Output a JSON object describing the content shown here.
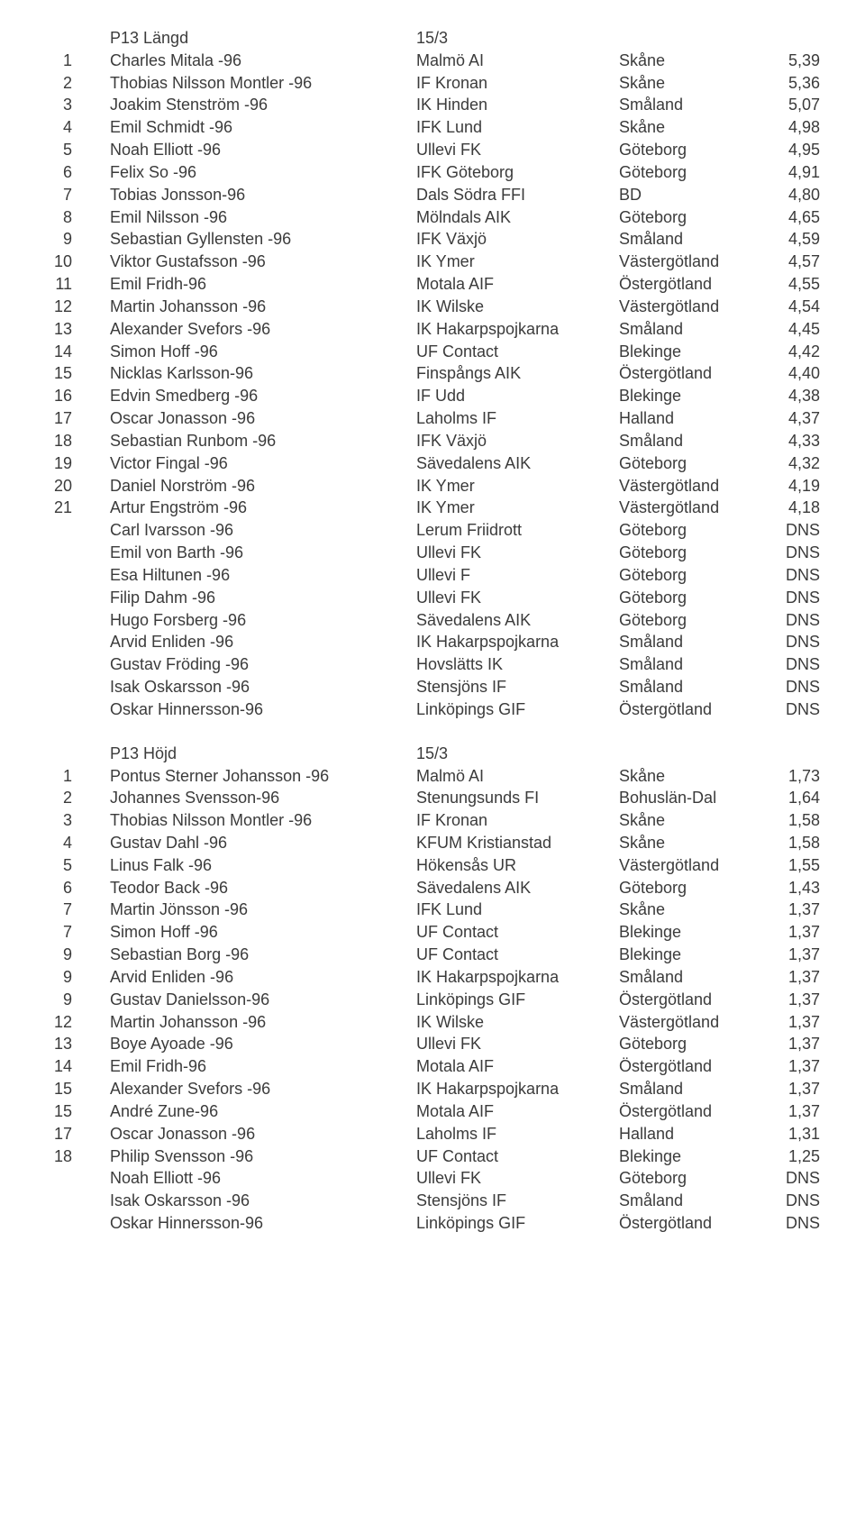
{
  "sections": [
    {
      "title": "P13 Längd",
      "date": "15/3",
      "rows": [
        {
          "rank": "1",
          "name": "Charles Mitala -96",
          "club": "Malmö AI",
          "region": "Skåne",
          "result": "5,39"
        },
        {
          "rank": "2",
          "name": "Thobias Nilsson Montler -96",
          "club": "IF Kronan",
          "region": "Skåne",
          "result": "5,36"
        },
        {
          "rank": "3",
          "name": "Joakim Stenström -96",
          "club": "IK Hinden",
          "region": "Småland",
          "result": "5,07"
        },
        {
          "rank": "4",
          "name": "Emil Schmidt -96",
          "club": "IFK Lund",
          "region": "Skåne",
          "result": "4,98"
        },
        {
          "rank": "5",
          "name": "Noah Elliott -96",
          "club": "Ullevi FK",
          "region": "Göteborg",
          "result": "4,95"
        },
        {
          "rank": "6",
          "name": "Felix So -96",
          "club": "IFK Göteborg",
          "region": "Göteborg",
          "result": "4,91"
        },
        {
          "rank": "7",
          "name": "Tobias Jonsson-96",
          "club": "Dals Södra FFI",
          "region": "BD",
          "result": "4,80"
        },
        {
          "rank": "8",
          "name": "Emil Nilsson -96",
          "club": "Mölndals AIK",
          "region": "Göteborg",
          "result": "4,65"
        },
        {
          "rank": "9",
          "name": "Sebastian Gyllensten -96",
          "club": "IFK Växjö",
          "region": "Småland",
          "result": "4,59"
        },
        {
          "rank": "10",
          "name": "Viktor Gustafsson -96",
          "club": "IK Ymer",
          "region": "Västergötland",
          "result": "4,57"
        },
        {
          "rank": "11",
          "name": "Emil Fridh-96",
          "club": "Motala AIF",
          "region": "Östergötland",
          "result": "4,55"
        },
        {
          "rank": "12",
          "name": "Martin Johansson -96",
          "club": "IK Wilske",
          "region": "Västergötland",
          "result": "4,54"
        },
        {
          "rank": "13",
          "name": "Alexander Svefors -96",
          "club": "IK Hakarpspojkarna",
          "region": "Småland",
          "result": "4,45"
        },
        {
          "rank": "14",
          "name": "Simon Hoff -96",
          "club": "UF Contact",
          "region": "Blekinge",
          "result": "4,42"
        },
        {
          "rank": "15",
          "name": "Nicklas Karlsson-96",
          "club": "Finspångs AIK",
          "region": "Östergötland",
          "result": "4,40"
        },
        {
          "rank": "16",
          "name": "Edvin Smedberg -96",
          "club": "IF Udd",
          "region": "Blekinge",
          "result": "4,38"
        },
        {
          "rank": "17",
          "name": "Oscar Jonasson -96",
          "club": "Laholms IF",
          "region": "Halland",
          "result": "4,37"
        },
        {
          "rank": "18",
          "name": "Sebastian Runbom -96",
          "club": "IFK Växjö",
          "region": "Småland",
          "result": "4,33"
        },
        {
          "rank": "19",
          "name": "Victor Fingal -96",
          "club": "Sävedalens AIK",
          "region": "Göteborg",
          "result": "4,32"
        },
        {
          "rank": "20",
          "name": "Daniel Norström -96",
          "club": "IK Ymer",
          "region": "Västergötland",
          "result": "4,19"
        },
        {
          "rank": "21",
          "name": "Artur Engström -96",
          "club": "IK Ymer",
          "region": "Västergötland",
          "result": "4,18"
        },
        {
          "rank": "",
          "name": "Carl Ivarsson -96",
          "club": "Lerum Friidrott",
          "region": "Göteborg",
          "result": "DNS"
        },
        {
          "rank": "",
          "name": "Emil von Barth -96",
          "club": "Ullevi FK",
          "region": "Göteborg",
          "result": "DNS"
        },
        {
          "rank": "",
          "name": "Esa Hiltunen -96",
          "club": "Ullevi F",
          "region": "Göteborg",
          "result": "DNS"
        },
        {
          "rank": "",
          "name": "Filip Dahm -96",
          "club": "Ullevi FK",
          "region": "Göteborg",
          "result": "DNS"
        },
        {
          "rank": "",
          "name": "Hugo Forsberg -96",
          "club": "Sävedalens AIK",
          "region": "Göteborg",
          "result": "DNS"
        },
        {
          "rank": "",
          "name": "Arvid Enliden -96",
          "club": "IK Hakarpspojkarna",
          "region": "Småland",
          "result": "DNS"
        },
        {
          "rank": "",
          "name": "Gustav Fröding -96",
          "club": "Hovslätts IK",
          "region": "Småland",
          "result": "DNS"
        },
        {
          "rank": "",
          "name": "Isak Oskarsson -96",
          "club": "Stensjöns IF",
          "region": "Småland",
          "result": "DNS"
        },
        {
          "rank": "",
          "name": "Oskar Hinnersson-96",
          "club": "Linköpings GIF",
          "region": "Östergötland",
          "result": "DNS"
        }
      ]
    },
    {
      "title": "P13 Höjd",
      "date": "15/3",
      "rows": [
        {
          "rank": "1",
          "name": "Pontus Sterner Johansson -96",
          "club": "Malmö AI",
          "region": "Skåne",
          "result": "1,73"
        },
        {
          "rank": "2",
          "name": "Johannes Svensson-96",
          "club": "Stenungsunds FI",
          "region": "Bohuslän-Dal",
          "result": "1,64"
        },
        {
          "rank": "3",
          "name": "Thobias Nilsson Montler -96",
          "club": "IF Kronan",
          "region": "Skåne",
          "result": "1,58"
        },
        {
          "rank": "4",
          "name": "Gustav Dahl -96",
          "club": "KFUM Kristianstad",
          "region": "Skåne",
          "result": "1,58"
        },
        {
          "rank": "5",
          "name": "Linus Falk -96",
          "club": "Hökensås UR",
          "region": "Västergötland",
          "result": "1,55"
        },
        {
          "rank": "6",
          "name": "Teodor Back -96",
          "club": "Sävedalens AIK",
          "region": "Göteborg",
          "result": "1,43"
        },
        {
          "rank": "7",
          "name": "Martin Jönsson -96",
          "club": "IFK Lund",
          "region": "Skåne",
          "result": "1,37"
        },
        {
          "rank": "7",
          "name": "Simon Hoff -96",
          "club": "UF Contact",
          "region": "Blekinge",
          "result": "1,37"
        },
        {
          "rank": "9",
          "name": "Sebastian Borg -96",
          "club": "UF Contact",
          "region": "Blekinge",
          "result": "1,37"
        },
        {
          "rank": "9",
          "name": "Arvid Enliden -96",
          "club": "IK Hakarpspojkarna",
          "region": "Småland",
          "result": "1,37"
        },
        {
          "rank": "9",
          "name": "Gustav Danielsson-96",
          "club": "Linköpings GIF",
          "region": "Östergötland",
          "result": "1,37"
        },
        {
          "rank": "12",
          "name": "Martin Johansson -96",
          "club": "IK Wilske",
          "region": "Västergötland",
          "result": "1,37"
        },
        {
          "rank": "13",
          "name": "Boye Ayoade -96",
          "club": "Ullevi FK",
          "region": "Göteborg",
          "result": "1,37"
        },
        {
          "rank": "14",
          "name": "Emil Fridh-96",
          "club": "Motala AIF",
          "region": "Östergötland",
          "result": "1,37"
        },
        {
          "rank": "15",
          "name": "Alexander Svefors -96",
          "club": "IK Hakarpspojkarna",
          "region": "Småland",
          "result": "1,37"
        },
        {
          "rank": "15",
          "name": "André Zune-96",
          "club": "Motala AIF",
          "region": "Östergötland",
          "result": "1,37"
        },
        {
          "rank": "17",
          "name": "Oscar Jonasson -96",
          "club": "Laholms IF",
          "region": "Halland",
          "result": "1,31"
        },
        {
          "rank": "18",
          "name": "Philip Svensson  -96",
          "club": "UF Contact",
          "region": "Blekinge",
          "result": "1,25"
        },
        {
          "rank": "",
          "name": "Noah Elliott -96",
          "club": "Ullevi FK",
          "region": "Göteborg",
          "result": "DNS"
        },
        {
          "rank": "",
          "name": "Isak Oskarsson -96",
          "club": "Stensjöns IF",
          "region": "Småland",
          "result": "DNS"
        },
        {
          "rank": "",
          "name": "Oskar Hinnersson-96",
          "club": "Linköpings GIF",
          "region": "Östergötland",
          "result": "DNS"
        }
      ]
    }
  ]
}
